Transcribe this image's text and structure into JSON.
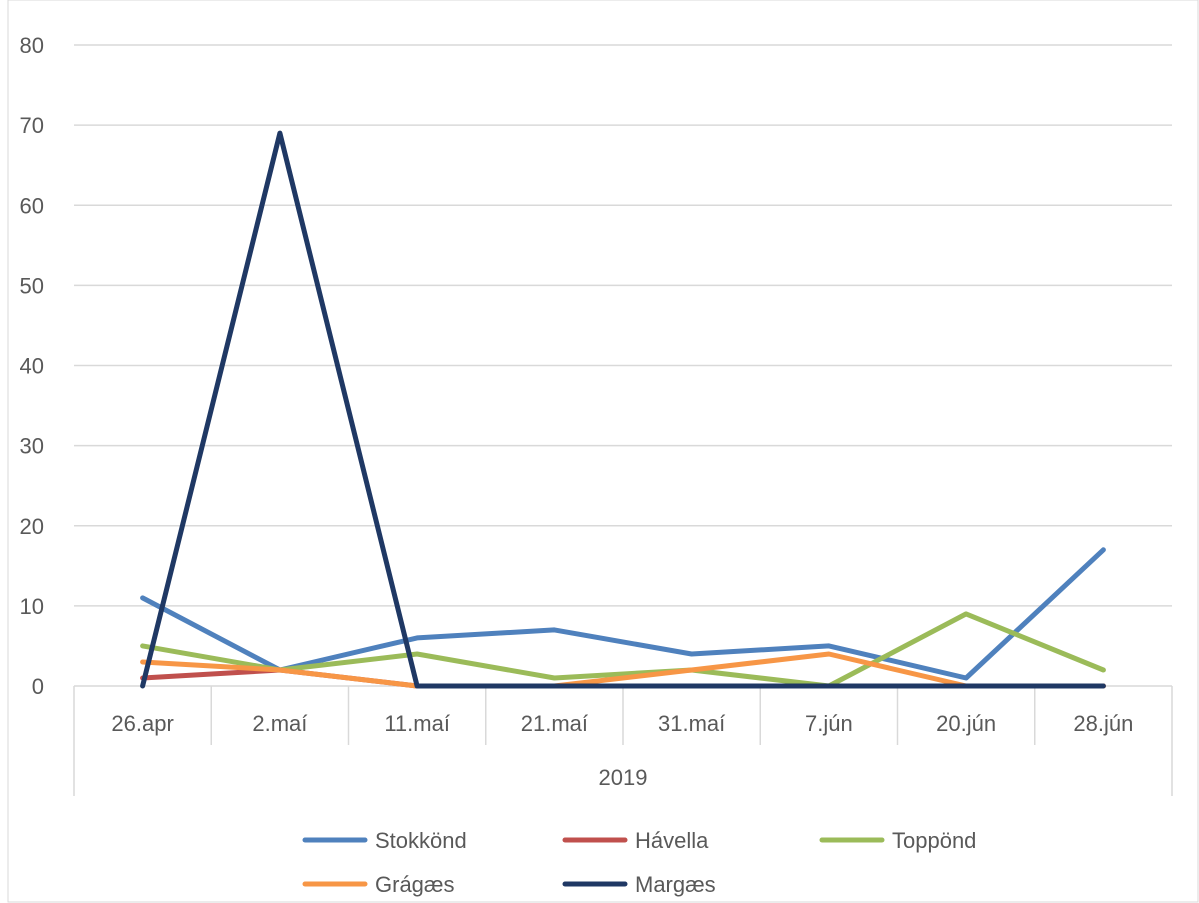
{
  "chart_data": {
    "type": "line",
    "title": "",
    "xlabel": "",
    "ylabel": "",
    "ylim": [
      0,
      80
    ],
    "yticks": [
      0,
      10,
      20,
      30,
      40,
      50,
      60,
      70,
      80
    ],
    "grid": true,
    "legend_position": "bottom",
    "categories": [
      "26.apr",
      "2.maí",
      "11.maí",
      "21.maí",
      "31.maí",
      "7.jún",
      "20.jún",
      "28.jún"
    ],
    "category_group": "2019",
    "series": [
      {
        "name": "Stokkönd",
        "color": "#4F81BD",
        "values": [
          11,
          2,
          6,
          7,
          4,
          5,
          1,
          17
        ]
      },
      {
        "name": "Hávella",
        "color": "#C0504D",
        "values": [
          1,
          2,
          0,
          0,
          0,
          0,
          0,
          0
        ]
      },
      {
        "name": "Toppönd",
        "color": "#9BBB59",
        "values": [
          5,
          2,
          4,
          1,
          2,
          0,
          9,
          2
        ]
      },
      {
        "name": "Grágæs",
        "color": "#F79646",
        "values": [
          3,
          2,
          0,
          0,
          2,
          4,
          0,
          0
        ]
      },
      {
        "name": "Margæs",
        "color": "#1F3864",
        "values": [
          0,
          69,
          0,
          0,
          0,
          0,
          0,
          0
        ]
      }
    ]
  }
}
